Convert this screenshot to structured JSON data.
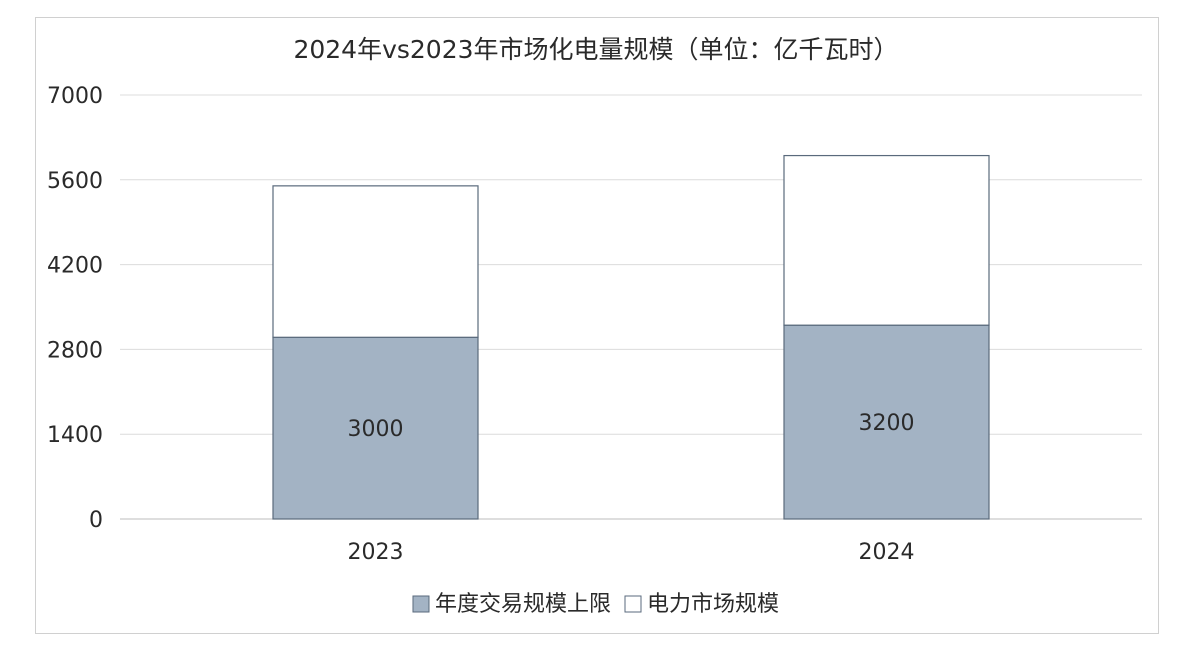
{
  "chart_data": {
    "type": "bar",
    "stacked": true,
    "title": "2024年vs2023年市场化电量规模（单位：亿千瓦时）",
    "categories": [
      "2023",
      "2024"
    ],
    "series": [
      {
        "name": "年度交易规模上限",
        "values": [
          3000,
          3200
        ],
        "color": "#a3b3c4",
        "data_labels": [
          "3000",
          "3200"
        ]
      },
      {
        "name": "电力市场规模",
        "values": [
          2500,
          2800
        ],
        "color": "#ffffff"
      }
    ],
    "ylim": [
      0,
      7000
    ],
    "yticks": [
      "0",
      "1400",
      "2800",
      "4200",
      "5600",
      "7000"
    ],
    "grid": true,
    "legend_position": "bottom",
    "colors": {
      "bar_edge": "#5a6a7c",
      "gridline": "#dcdcdc",
      "text": "#2a2a2a"
    }
  }
}
